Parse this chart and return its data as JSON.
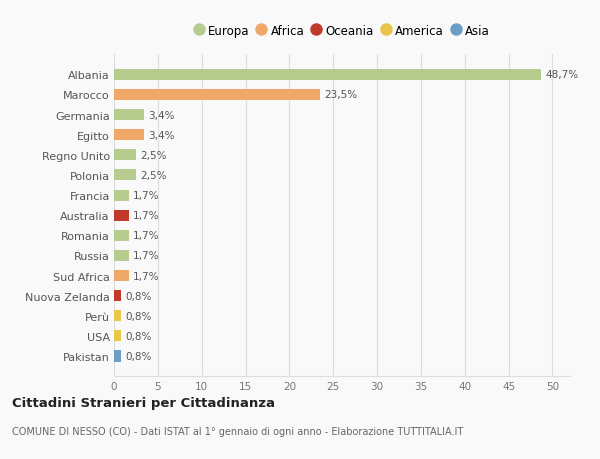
{
  "categories": [
    "Albania",
    "Marocco",
    "Germania",
    "Egitto",
    "Regno Unito",
    "Polonia",
    "Francia",
    "Australia",
    "Romania",
    "Russia",
    "Sud Africa",
    "Nuova Zelanda",
    "Perù",
    "USA",
    "Pakistan"
  ],
  "values": [
    48.7,
    23.5,
    3.4,
    3.4,
    2.5,
    2.5,
    1.7,
    1.7,
    1.7,
    1.7,
    1.7,
    0.8,
    0.8,
    0.8,
    0.8
  ],
  "labels": [
    "48,7%",
    "23,5%",
    "3,4%",
    "3,4%",
    "2,5%",
    "2,5%",
    "1,7%",
    "1,7%",
    "1,7%",
    "1,7%",
    "1,7%",
    "0,8%",
    "0,8%",
    "0,8%",
    "0,8%"
  ],
  "colors": [
    "#b5cc8e",
    "#f0a868",
    "#b5cc8e",
    "#f0a868",
    "#b5cc8e",
    "#b5cc8e",
    "#b5cc8e",
    "#c0392b",
    "#b5cc8e",
    "#b5cc8e",
    "#f0a868",
    "#c0392b",
    "#e8c84a",
    "#e8c84a",
    "#6b9ec7"
  ],
  "legend": [
    {
      "label": "Europa",
      "color": "#b5cc8e"
    },
    {
      "label": "Africa",
      "color": "#f0a868"
    },
    {
      "label": "Oceania",
      "color": "#c0392b"
    },
    {
      "label": "America",
      "color": "#e8c44a"
    },
    {
      "label": "Asia",
      "color": "#6b9ec7"
    }
  ],
  "xlim": [
    0,
    52
  ],
  "xticks": [
    0,
    5,
    10,
    15,
    20,
    25,
    30,
    35,
    40,
    45,
    50
  ],
  "title": "Cittadini Stranieri per Cittadinanza",
  "subtitle": "COMUNE DI NESSO (CO) - Dati ISTAT al 1° gennaio di ogni anno - Elaborazione TUTTITALIA.IT",
  "bg_color": "#f9f9f9",
  "grid_color": "#dddddd",
  "bar_height": 0.55
}
